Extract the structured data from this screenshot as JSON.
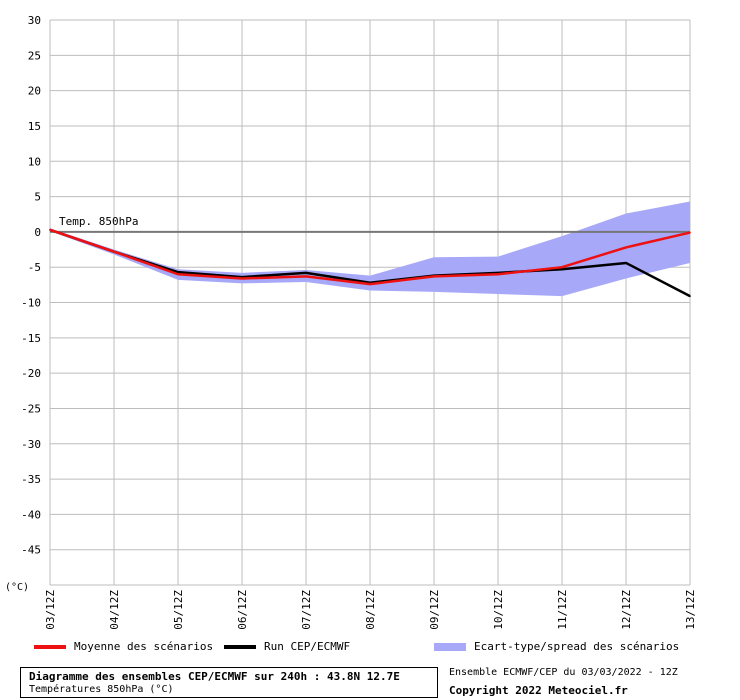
{
  "chart_data": {
    "type": "line",
    "y_unit_label": "(°C)",
    "ylim": [
      -50,
      30
    ],
    "yticks": [
      30,
      25,
      20,
      15,
      10,
      5,
      0,
      -5,
      -10,
      -15,
      -20,
      -25,
      -30,
      -35,
      -40,
      -45
    ],
    "categories": [
      "03/12Z",
      "04/12Z",
      "05/12Z",
      "06/12Z",
      "07/12Z",
      "08/12Z",
      "09/12Z",
      "10/12Z",
      "11/12Z",
      "12/12Z",
      "13/12Z"
    ],
    "annotation": "Temp. 850hPa",
    "annotation_y": 0,
    "grid": true,
    "series": [
      {
        "name": "Moyenne des scénarios",
        "color": "#ee1111",
        "kind": "line",
        "values": [
          0.3,
          -2.8,
          -6.0,
          -6.6,
          -6.3,
          -7.4,
          -6.3,
          -6.0,
          -5.0,
          -2.2,
          -0.1
        ]
      },
      {
        "name": "Run CEP/ECMWF",
        "color": "#000000",
        "kind": "line",
        "values": [
          0.3,
          -2.8,
          -5.7,
          -6.4,
          -5.8,
          -7.2,
          -6.2,
          -5.8,
          -5.3,
          -4.4,
          -9.1
        ]
      },
      {
        "name": "Ecart-type/spread des scénarios",
        "color": "#a8a8f8",
        "kind": "band",
        "upper": [
          0.5,
          -2.5,
          -5.3,
          -5.8,
          -5.4,
          -6.2,
          -3.6,
          -3.5,
          -0.6,
          2.6,
          4.3
        ],
        "lower": [
          0.1,
          -3.2,
          -6.8,
          -7.3,
          -7.1,
          -8.3,
          -8.5,
          -8.8,
          -9.1,
          -6.6,
          -4.4
        ]
      }
    ]
  },
  "footer": {
    "title": "Diagramme des ensembles CEP/ECMWF sur 240h : 43.8N 12.7E",
    "subtitle": "Températures 850hPa (°C)",
    "run_info": "Ensemble ECMWF/CEP du 03/03/2022 - 12Z",
    "copyright": "Copyright 2022 Meteociel.fr"
  }
}
